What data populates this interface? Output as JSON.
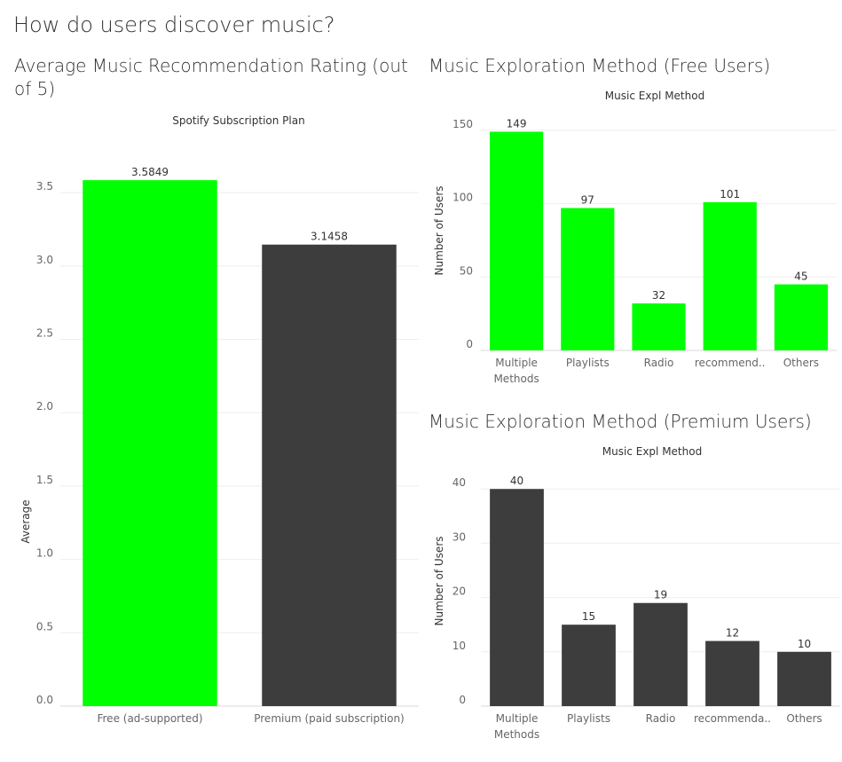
{
  "dashboard": {
    "title": "How do users discover music?"
  },
  "colors": {
    "free_green": "#00FF00",
    "premium_gray": "#3D3D3D"
  },
  "chart_data": [
    {
      "id": "rating",
      "type": "bar",
      "title": "Average Music Recommendation Rating (out of 5)",
      "column_header": "Spotify Subscription Plan",
      "ylabel": "Average",
      "categories": [
        "Free (ad-supported)",
        "Premium (paid subscription)"
      ],
      "values": [
        3.5849,
        3.1458
      ],
      "value_labels": [
        "3.5849",
        "3.1458"
      ],
      "bar_colors": [
        "#00FF00",
        "#3D3D3D"
      ],
      "ylim": [
        0,
        3.9
      ],
      "yticks": [
        "0.0",
        "0.5",
        "1.0",
        "1.5",
        "2.0",
        "2.5",
        "3.0",
        "3.5"
      ],
      "grid": true
    },
    {
      "id": "free",
      "type": "bar",
      "title": "Music Exploration Method (Free Users)",
      "column_header": "Music Expl Method",
      "ylabel": "Number of Users",
      "categories": [
        "Multiple Methods",
        "Playlists",
        "Radio",
        "recommenda..",
        "Others"
      ],
      "category_lines": [
        [
          "Multiple",
          "Methods"
        ],
        [
          "Playlists"
        ],
        [
          "Radio"
        ],
        [
          "recommend.."
        ],
        [
          "Others"
        ]
      ],
      "values": [
        149,
        97,
        32,
        101,
        45
      ],
      "value_labels": [
        "149",
        "97",
        "32",
        "101",
        "45"
      ],
      "bar_color": "#00FF00",
      "ylim": [
        0,
        162
      ],
      "yticks": [
        "0",
        "50",
        "100",
        "150"
      ],
      "grid": true
    },
    {
      "id": "premium",
      "type": "bar",
      "title": "Music Exploration Method (Premium Users)",
      "column_header": "Music Expl Method",
      "ylabel": "Number of Users",
      "categories": [
        "Multiple Methods",
        "Playlists",
        "Radio",
        "recommenda..",
        "Others"
      ],
      "category_lines": [
        [
          "Multiple",
          "Methods"
        ],
        [
          "Playlists"
        ],
        [
          "Radio"
        ],
        [
          "recommenda.."
        ],
        [
          "Others"
        ]
      ],
      "values": [
        40,
        15,
        19,
        12,
        10
      ],
      "value_labels": [
        "40",
        "15",
        "19",
        "12",
        "10"
      ],
      "bar_color": "#3D3D3D",
      "ylim": [
        0,
        42
      ],
      "yticks": [
        "0",
        "10",
        "20",
        "30",
        "40"
      ],
      "grid": true
    }
  ]
}
